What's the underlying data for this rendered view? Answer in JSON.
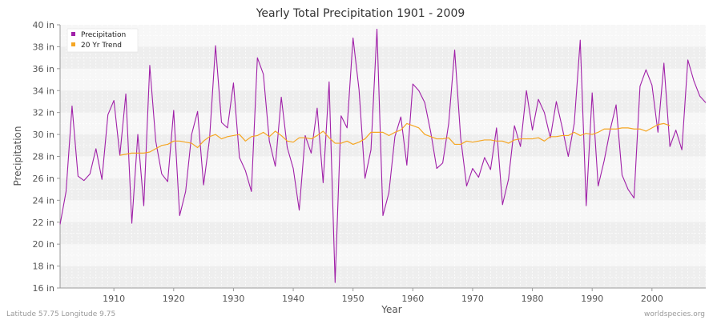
{
  "colors": {
    "precipitation": "#a020a8",
    "trend": "#f5a623",
    "band_dark": "#eeeeee",
    "band_light": "#f7f7f7"
  },
  "footer": {
    "location": "Latitude 57.75 Longitude 9.75",
    "source": "worldspecies.org"
  },
  "chart_data": {
    "type": "line",
    "title": "Yearly Total Precipitation 1901 - 2009",
    "xlabel": "Year",
    "ylabel": "Precipitation",
    "xlim": [
      1901,
      2009
    ],
    "ylim": [
      16,
      40
    ],
    "x_ticks": [
      1910,
      1920,
      1930,
      1940,
      1950,
      1960,
      1970,
      1980,
      1990,
      2000
    ],
    "y_ticks": [
      16,
      18,
      20,
      22,
      24,
      26,
      28,
      30,
      32,
      34,
      36,
      38,
      40
    ],
    "y_tick_labels": [
      "16 in",
      "18 in",
      "20 in",
      "22 in",
      "24 in",
      "26 in",
      "28 in",
      "30 in",
      "32 in",
      "34 in",
      "36 in",
      "38 in",
      "40 in"
    ],
    "x_tick_labels": [
      "1910",
      "1920",
      "1930",
      "1940",
      "1950",
      "1960",
      "1970",
      "1980",
      "1990",
      "2000"
    ],
    "legend_position": "top-left",
    "grid": true,
    "series": [
      {
        "name": "Precipitation",
        "start_year": 1901,
        "values": [
          21.8,
          24.8,
          32.6,
          26.2,
          25.8,
          26.4,
          28.7,
          25.9,
          31.8,
          33.1,
          28.1,
          33.7,
          21.9,
          30.0,
          23.5,
          36.3,
          29.4,
          26.4,
          25.7,
          32.2,
          22.6,
          24.8,
          30.0,
          32.1,
          25.4,
          29.6,
          38.1,
          31.1,
          30.6,
          34.7,
          27.9,
          26.7,
          24.8,
          37.0,
          35.5,
          29.4,
          27.1,
          33.4,
          28.8,
          26.9,
          23.1,
          29.9,
          28.3,
          32.4,
          25.6,
          34.8,
          16.5,
          31.7,
          30.6,
          38.8,
          34.1,
          26.0,
          28.6,
          39.6,
          22.6,
          24.7,
          29.8,
          31.6,
          27.2,
          34.6,
          34.0,
          32.9,
          30.2,
          26.9,
          27.4,
          31.0,
          37.7,
          29.7,
          25.3,
          26.9,
          26.1,
          27.9,
          26.8,
          30.6,
          23.6,
          25.9,
          30.8,
          28.9,
          34.0,
          30.4,
          33.2,
          32.0,
          29.7,
          33.0,
          30.6,
          28.0,
          31.0,
          38.6,
          23.5,
          33.8,
          25.3,
          27.6,
          30.4,
          32.7,
          26.3,
          25.0,
          24.2,
          34.4,
          35.9,
          34.5,
          30.2,
          36.5,
          28.9,
          30.4,
          28.6,
          36.8,
          34.9,
          33.5,
          32.9
        ]
      },
      {
        "name": "20 Yr Trend",
        "start_year": 1911,
        "values": [
          28.1,
          28.2,
          28.3,
          28.3,
          28.3,
          28.4,
          28.7,
          29.0,
          29.1,
          29.4,
          29.4,
          29.3,
          29.2,
          28.8,
          29.4,
          29.8,
          30.0,
          29.6,
          29.8,
          29.9,
          30.0,
          29.4,
          29.8,
          29.9,
          30.2,
          29.8,
          30.3,
          29.9,
          29.4,
          29.3,
          29.7,
          29.7,
          29.6,
          29.9,
          30.3,
          29.7,
          29.2,
          29.2,
          29.4,
          29.1,
          29.3,
          29.6,
          30.2,
          30.2,
          30.2,
          29.9,
          30.2,
          30.4,
          31.0,
          30.8,
          30.6,
          30.0,
          29.8,
          29.6,
          29.6,
          29.7,
          29.1,
          29.1,
          29.4,
          29.3,
          29.4,
          29.5,
          29.5,
          29.4,
          29.4,
          29.2,
          29.5,
          29.6,
          29.6,
          29.6,
          29.7,
          29.4,
          29.8,
          29.8,
          29.9,
          29.9,
          30.2,
          29.9,
          30.1,
          30.0,
          30.2,
          30.5,
          30.5,
          30.5,
          30.6,
          30.6,
          30.5,
          30.5,
          30.3,
          30.6,
          30.9,
          31.0,
          30.8
        ]
      }
    ]
  }
}
